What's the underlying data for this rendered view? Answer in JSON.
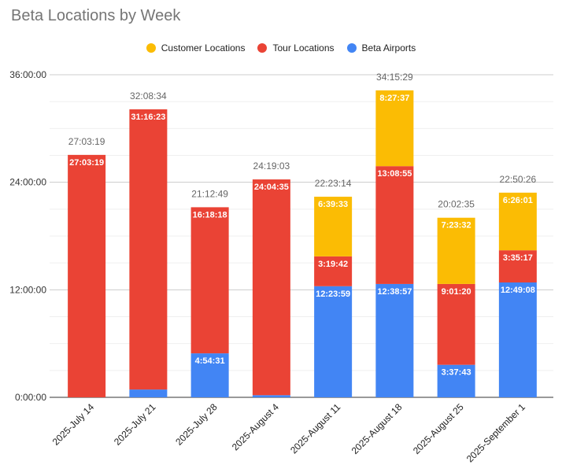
{
  "chart_data": {
    "type": "bar",
    "stacked": true,
    "title": "Beta Locations by Week",
    "xlabel": "",
    "ylabel": "",
    "ylim_seconds": [
      0,
      129600
    ],
    "y_ticks": [
      {
        "label": "0:00:00",
        "seconds": 0
      },
      {
        "label": "12:00:00",
        "seconds": 43200
      },
      {
        "label": "24:00:00",
        "seconds": 86400
      },
      {
        "label": "36:00:00",
        "seconds": 129600
      }
    ],
    "grid": true,
    "legend_position": "top",
    "categories": [
      "2025-July 14",
      "2025-July 21",
      "2025-July 28",
      "2025-August 4",
      "2025-August 11",
      "2025-August 18",
      "2025-August 25",
      "2025-September 1"
    ],
    "series": [
      {
        "name": "Beta Airports",
        "color": "#4285f4",
        "labels": [
          "",
          "0:52:11",
          "4:54:31",
          "0:14:28",
          "12:23:59",
          "12:38:57",
          "3:37:43",
          "12:49:08"
        ]
      },
      {
        "name": "Tour Locations",
        "color": "#ea4335",
        "labels": [
          "27:03:19",
          "31:16:23",
          "16:18:18",
          "24:04:35",
          "3:19:42",
          "13:08:55",
          "9:01:20",
          "3:35:17"
        ]
      },
      {
        "name": "Customer Locations",
        "color": "#fbbc04",
        "labels": [
          "",
          "",
          "",
          "",
          "6:39:33",
          "8:27:37",
          "7:23:32",
          "6:26:01"
        ]
      }
    ],
    "legend_order": [
      "Customer Locations",
      "Tour Locations",
      "Beta Airports"
    ],
    "totals": [
      "27:03:19",
      "32:08:34",
      "21:12:49",
      "24:19:03",
      "22:23:14",
      "34:15:29",
      "20:02:35",
      "22:50:26"
    ]
  }
}
